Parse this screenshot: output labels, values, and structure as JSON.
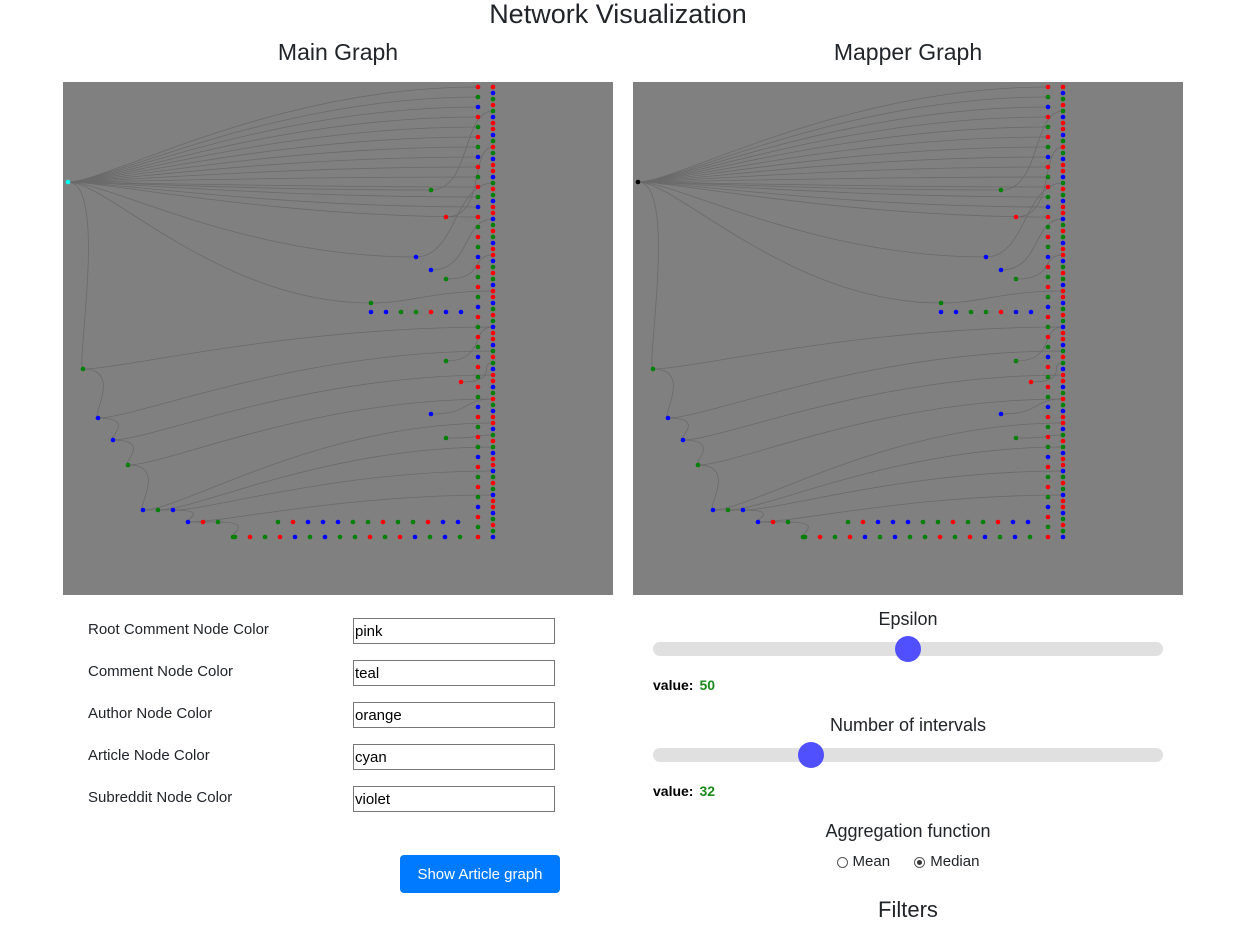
{
  "page": {
    "title": "Network Visualization"
  },
  "main_graph": {
    "title": "Main Graph",
    "root_color": "#00ffff"
  },
  "mapper_graph": {
    "title": "Mapper Graph",
    "root_color": "#000000"
  },
  "node_colors": {
    "fields": [
      {
        "label": "Root Comment Node Color",
        "value": "pink"
      },
      {
        "label": "Comment Node Color",
        "value": "teal"
      },
      {
        "label": "Author Node Color",
        "value": "orange"
      },
      {
        "label": "Article Node Color",
        "value": "cyan"
      },
      {
        "label": "Subreddit Node Color",
        "value": "violet"
      }
    ]
  },
  "buttons": {
    "show_article": "Show Article graph"
  },
  "epsilon": {
    "title": "Epsilon",
    "value_label": "value:",
    "value": "50",
    "fraction": 0.5
  },
  "intervals": {
    "title": "Number of intervals",
    "value_label": "value:",
    "value": "32",
    "fraction": 0.31
  },
  "aggregation": {
    "title": "Aggregation function",
    "options": [
      {
        "label": "Mean",
        "checked": false
      },
      {
        "label": "Median",
        "checked": true
      }
    ]
  },
  "filters": {
    "title": "Filters"
  },
  "colors": {
    "red": "#ff0000",
    "green": "#008000",
    "blue": "#0000ff",
    "edge": "#6a6a6a"
  }
}
